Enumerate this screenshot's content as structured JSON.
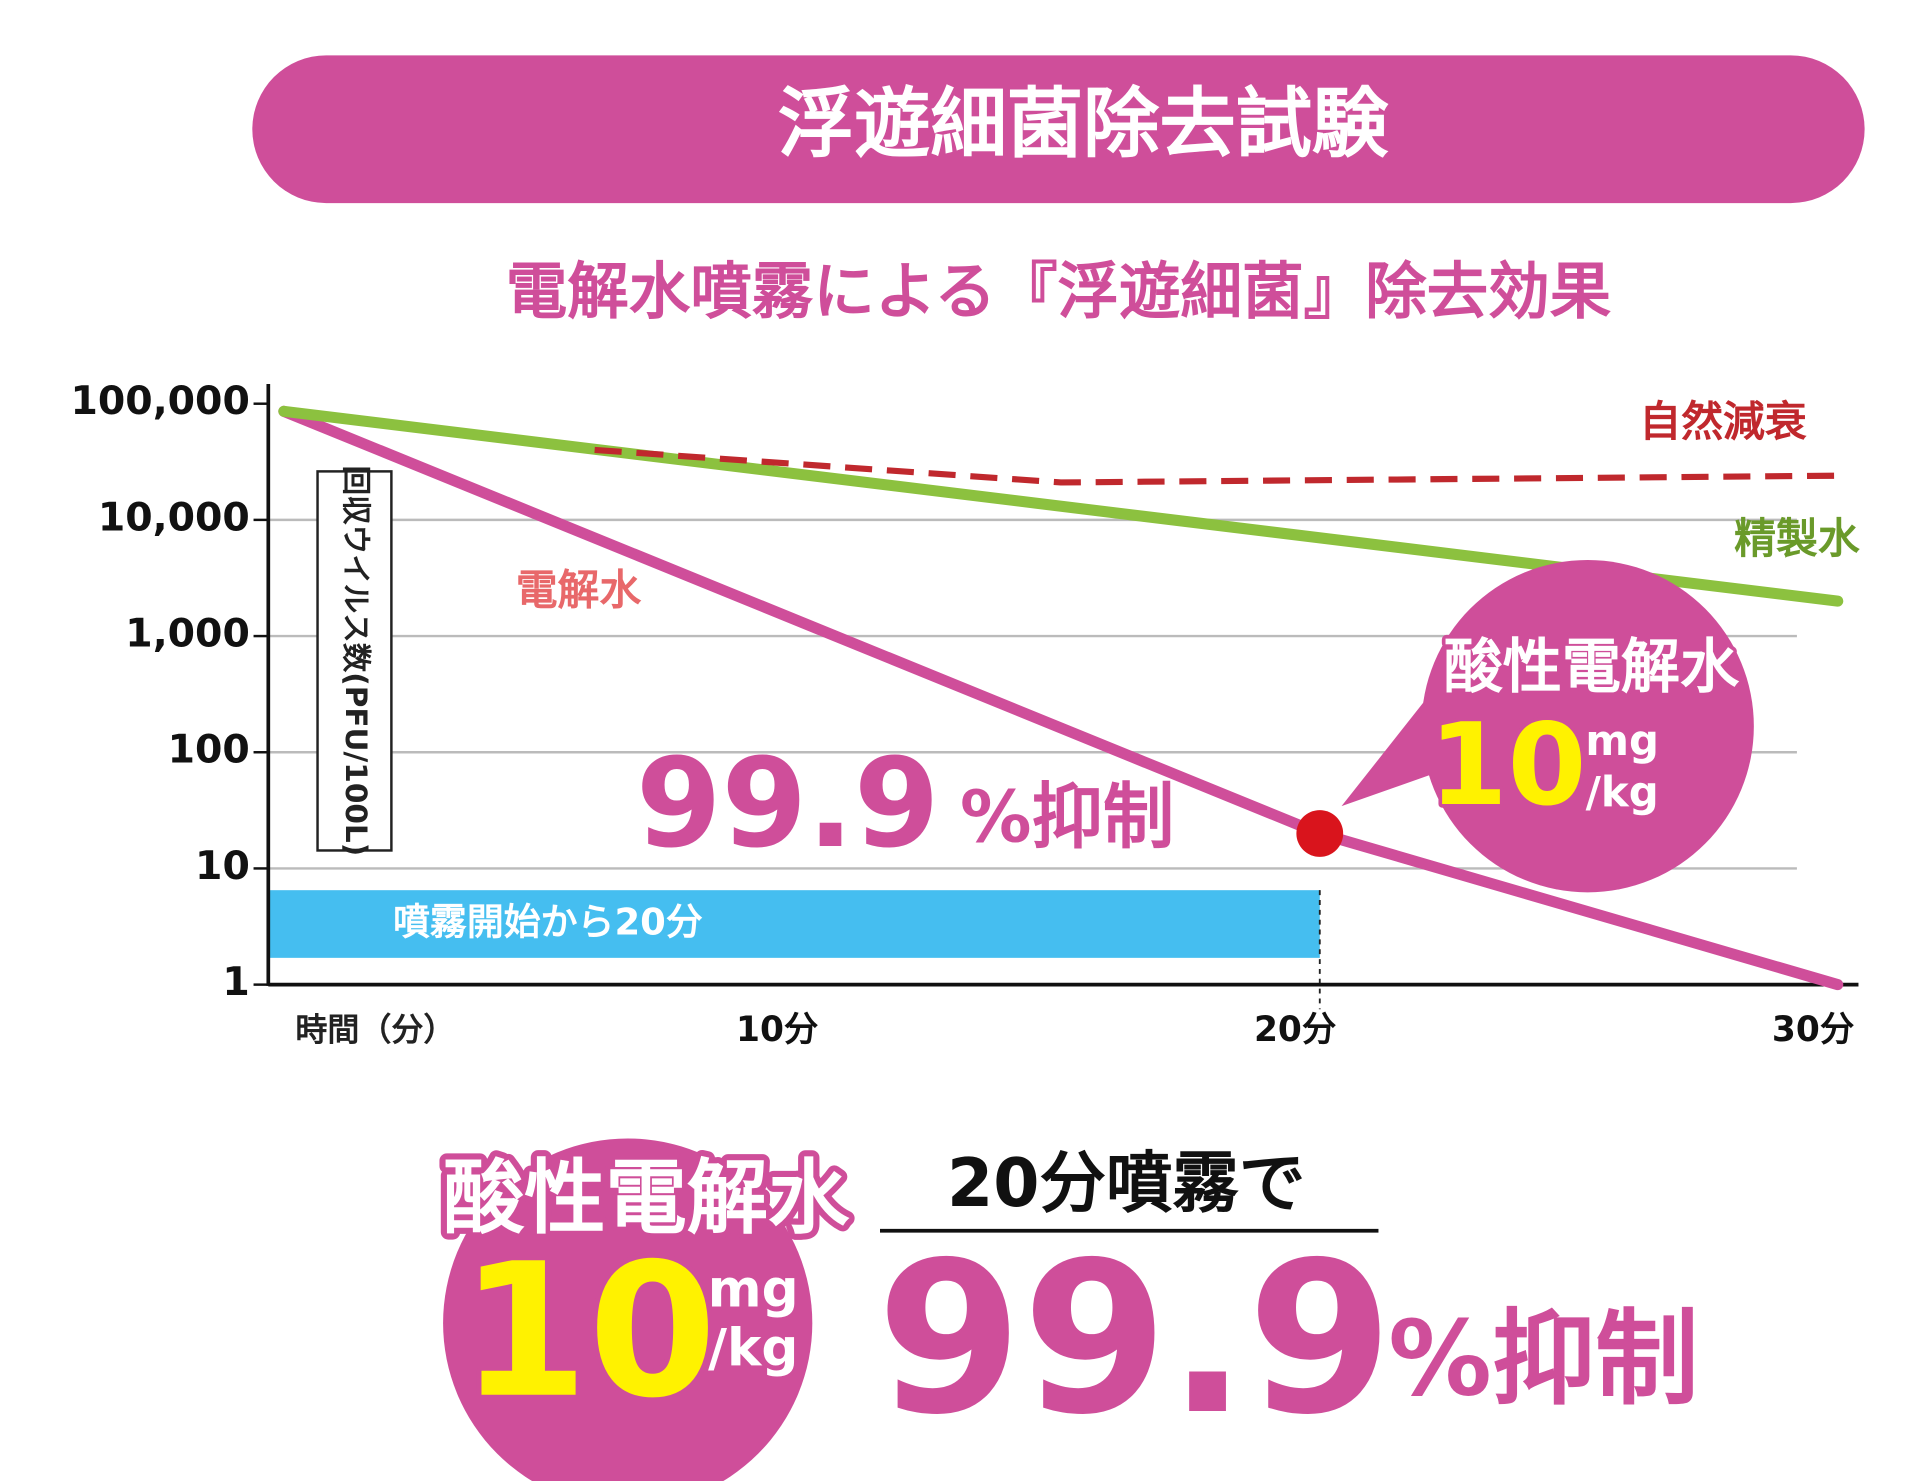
{
  "title": "浮遊細菌除去試験",
  "chart_data": {
    "type": "line",
    "subtitle": "電解水噴霧による『浮遊細菌』除去効果",
    "y_label": "回収ウイルス数(PFU/100L)",
    "x_label": "時間（分）",
    "y_log": true,
    "ylim": [
      1,
      100000
    ],
    "yticks": [
      1,
      10,
      100,
      {
        "value": 1000,
        "label": "1,000"
      },
      {
        "value": 10000,
        "label": "10,000"
      },
      {
        "value": 100000,
        "label": "100,000"
      }
    ],
    "xlim": [
      -0.3,
      30.4
    ],
    "xticks": [
      {
        "value": 10,
        "label": "10分"
      },
      {
        "value": 20,
        "label": "20分"
      },
      {
        "value": 30,
        "label": "30分"
      }
    ],
    "grid": true,
    "series": [
      {
        "name": "電解水",
        "color": "#cf4e9a",
        "label_color": "#e8686a",
        "x": [
          0,
          20,
          30
        ],
        "values": [
          86000,
          20,
          1
        ]
      },
      {
        "name": "精製水",
        "color": "#8cc13f",
        "label_color": "#6a9a2a",
        "x": [
          0,
          30
        ],
        "values": [
          86000,
          2000
        ]
      },
      {
        "name": "自然減衰",
        "color": "#c0282d",
        "label_color": "#c0282d",
        "dashed": true,
        "x": [
          6,
          15,
          30
        ],
        "values": [
          40000,
          21000,
          24000
        ]
      }
    ],
    "highlight": {
      "series": 0,
      "index": 1,
      "color": "#d9141c"
    },
    "band": {
      "label": "噴霧開始から20分",
      "x_range": [
        -0.3,
        20
      ],
      "y_range": [
        1.7,
        6.5
      ],
      "color": "#45bef0"
    },
    "annotation": {
      "value": "99.9",
      "suffix": "%抑制"
    },
    "callout": {
      "title": "酸性電解水",
      "value": "10",
      "unit_top": "mg",
      "unit_bottom": "/kg"
    }
  },
  "summary": {
    "title": "酸性電解水",
    "value": "10",
    "unit_top": "mg",
    "unit_bottom": "/kg",
    "caption": "20分噴霧で",
    "result": "99.9",
    "suffix": "%抑制"
  }
}
